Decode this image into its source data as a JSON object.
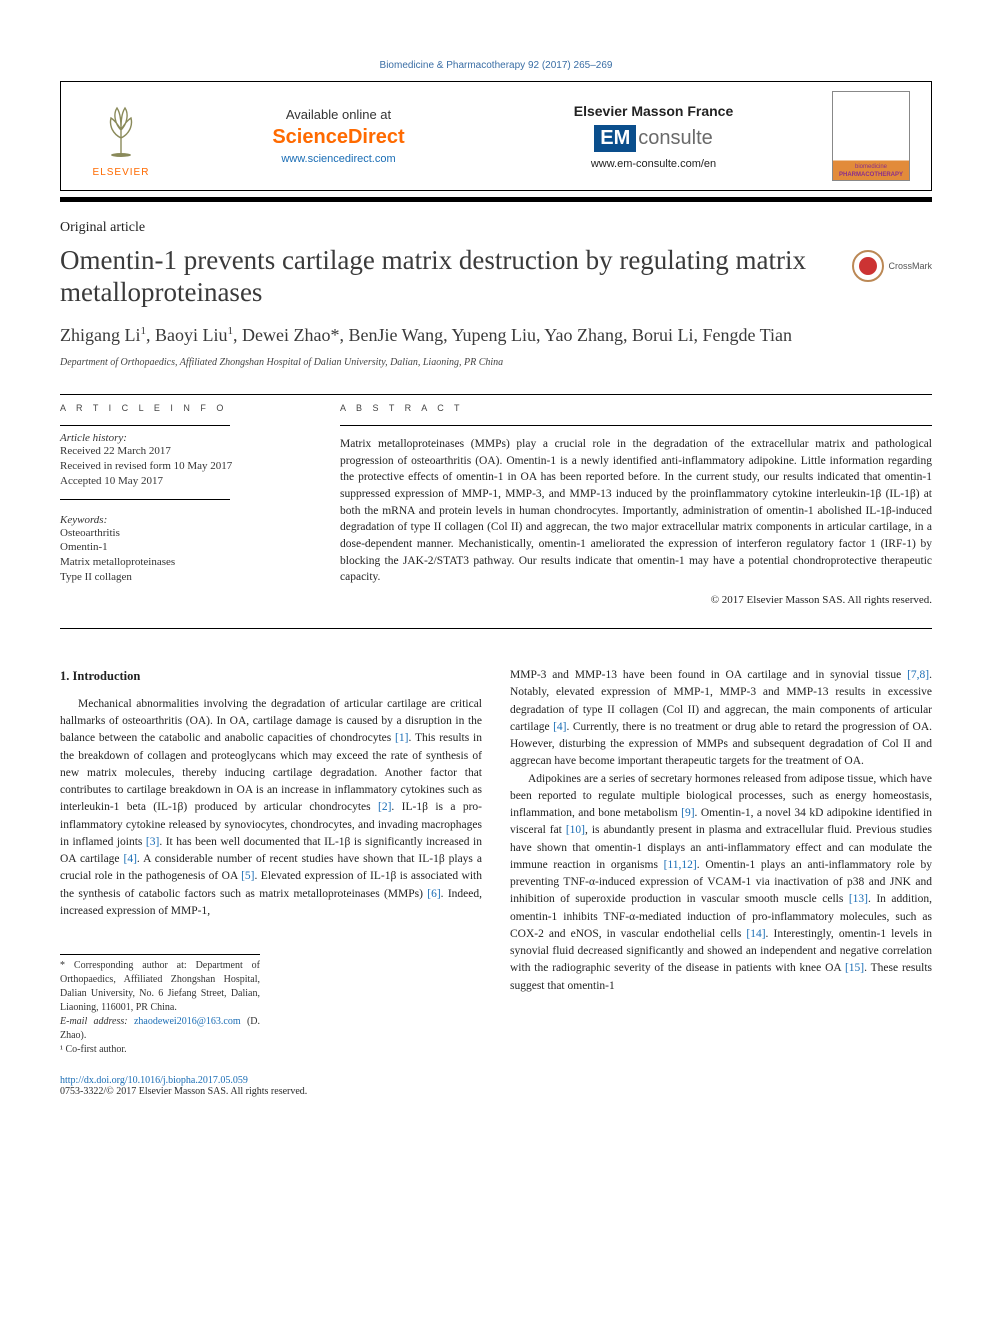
{
  "colors": {
    "link": "#1a6db5",
    "accent_orange": "#ff6a00",
    "text": "#2a2a2a",
    "em_box_bg": "#0a4e8c",
    "cover_accent": "#e28b3a",
    "cover_text": "#8b2f8b",
    "crossmark_red": "#cc3333"
  },
  "journal_header": "Biomedicine & Pharmacotherapy 92 (2017) 265–269",
  "banner": {
    "elsevier_label": "ELSEVIER",
    "science_direct": {
      "available": "Available online at",
      "logo": "ScienceDirect",
      "url": "www.sciencedirect.com"
    },
    "em": {
      "title": "Elsevier Masson France",
      "box": "EM",
      "text": "consulte",
      "url": "www.em-consulte.com/en"
    },
    "cover_line1": "biomedicine",
    "cover_line2": "PHARMACOTHERAPY"
  },
  "article_type": "Original article",
  "title": "Omentin-1 prevents cartilage matrix destruction by regulating matrix metalloproteinases",
  "crossmark": "CrossMark",
  "authors_html": "Zhigang Li<sup>1</sup>, Baoyi Liu<sup>1</sup>, Dewei Zhao*, BenJie Wang, Yupeng Liu, Yao Zhang, Borui Li, Fengde Tian",
  "affiliation": "Department of Orthopaedics, Affiliated Zhongshan Hospital of Dalian University, Dalian, Liaoning, PR China",
  "article_info": {
    "heading": "A R T I C L E   I N F O",
    "history_label": "Article history:",
    "received": "Received 22 March 2017",
    "revised": "Received in revised form 10 May 2017",
    "accepted": "Accepted 10 May 2017",
    "keywords_label": "Keywords:",
    "keywords": [
      "Osteoarthritis",
      "Omentin-1",
      "Matrix metalloproteinases",
      "Type II collagen"
    ]
  },
  "abstract": {
    "heading": "A B S T R A C T",
    "text": "Matrix metalloproteinases (MMPs) play a crucial role in the degradation of the extracellular matrix and pathological progression of osteoarthritis (OA). Omentin-1 is a newly identified anti-inflammatory adipokine. Little information regarding the protective effects of omentin-1 in OA has been reported before. In the current study, our results indicated that omentin-1 suppressed expression of MMP-1, MMP-3, and MMP-13 induced by the proinflammatory cytokine interleukin-1β (IL-1β) at both the mRNA and protein levels in human chondrocytes. Importantly, administration of omentin-1 abolished IL-1β-induced degradation of type II collagen (Col II) and aggrecan, the two major extracellular matrix components in articular cartilage, in a dose-dependent manner. Mechanistically, omentin-1 ameliorated the expression of interferon regulatory factor 1 (IRF-1) by blocking the JAK-2/STAT3 pathway. Our results indicate that omentin-1 may have a potential chondroprotective therapeutic capacity.",
    "copyright": "© 2017 Elsevier Masson SAS. All rights reserved."
  },
  "intro": {
    "heading": "1. Introduction",
    "p1a": "Mechanical abnormalities involving the degradation of articular cartilage are critical hallmarks of osteoarthritis (OA). In OA, cartilage damage is caused by a disruption in the balance between the catabolic and anabolic capacities of chondrocytes ",
    "r1": "[1]",
    "p1b": ". This results in the breakdown of collagen and proteoglycans which may exceed the rate of synthesis of new matrix molecules, thereby inducing cartilage degradation. Another factor that contributes to cartilage breakdown in OA is an increase in inflammatory cytokines such as interleukin-1 beta (IL-1β) produced by articular chondrocytes ",
    "r2": "[2]",
    "p1c": ". IL-1β is a pro-inflammatory cytokine released by synoviocytes, chondrocytes, and invading macrophages in inflamed joints ",
    "r3": "[3]",
    "p1d": ". It has been well documented that IL-1β is significantly increased in OA cartilage ",
    "r4": "[4]",
    "p1e": ". A considerable number of recent studies have shown that IL-1β plays a crucial role in the pathogenesis of OA ",
    "r5": "[5]",
    "p1f": ". Elevated expression of IL-1β is associated with the synthesis of catabolic factors such as matrix metalloproteinases (MMPs) ",
    "r6": "[6]",
    "p1g": ". Indeed, increased expression of MMP-1,",
    "p2a": "MMP-3 and MMP-13 have been found in OA cartilage and in synovial tissue ",
    "r78": "[7,8]",
    "p2b": ". Notably, elevated expression of MMP-1, MMP-3 and MMP-13 results in excessive degradation of type II collagen (Col II) and aggrecan, the main components of articular cartilage ",
    "r4b": "[4]",
    "p2c": ". Currently, there is no treatment or drug able to retard the progression of OA. However, disturbing the expression of MMPs and subsequent degradation of Col II and aggrecan have become important therapeutic targets for the treatment of OA.",
    "p3a": "Adipokines are a series of secretary hormones released from adipose tissue, which have been reported to regulate multiple biological processes, such as energy homeostasis, inflammation, and bone metabolism ",
    "r9": "[9]",
    "p3b": ". Omentin-1, a novel 34 kD adipokine identified in visceral fat ",
    "r10": "[10]",
    "p3c": ", is abundantly present in plasma and extracellular fluid. Previous studies have shown that omentin-1 displays an anti-inflammatory effect and can modulate the immune reaction in organisms ",
    "r1112": "[11,12]",
    "p3d": ". Omentin-1 plays an anti-inflammatory role by preventing TNF-α-induced expression of VCAM-1 via inactivation of p38 and JNK and inhibition of superoxide production in vascular smooth muscle cells ",
    "r13": "[13]",
    "p3e": ". In addition, omentin-1 inhibits TNF-α-mediated induction of pro-inflammatory molecules, such as COX-2 and eNOS, in vascular endothelial cells ",
    "r14": "[14]",
    "p3f": ". Interestingly, omentin-1 levels in synovial fluid decreased significantly and showed an independent and negative correlation with the radiographic severity of the disease in patients with knee OA ",
    "r15": "[15]",
    "p3g": ". These results suggest that omentin-1"
  },
  "footnotes": {
    "corr": "* Corresponding author at: Department of Orthopaedics, Affiliated Zhongshan Hospital, Dalian University, No. 6 Jiefang Street, Dalian, Liaoning, 116001, PR China.",
    "email_label": "E-mail address: ",
    "email": "zhaodewei2016@163.com",
    "email_tail": " (D. Zhao).",
    "cofirst": "¹ Co-first author."
  },
  "doi": {
    "url": "http://dx.doi.org/10.1016/j.biopha.2017.05.059",
    "issn_line": "0753-3322/© 2017 Elsevier Masson SAS. All rights reserved."
  }
}
